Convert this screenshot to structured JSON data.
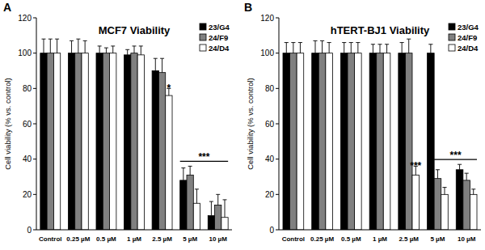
{
  "chart_data": [
    {
      "type": "bar",
      "panel_label": "A",
      "title": "MCF7 Viability",
      "y_label": "Cell viability (% vs. control)",
      "categories": [
        "Control",
        "0.25 µM",
        "0.5 µM",
        "1 µM",
        "2.5 µM",
        "5 µM",
        "10 µM"
      ],
      "series": [
        {
          "name": "23/G4",
          "color": "#000000",
          "values": [
            100,
            100,
            100,
            99,
            90,
            28,
            8
          ],
          "errors": [
            8,
            7,
            4,
            3,
            7,
            7,
            8
          ]
        },
        {
          "name": "24/F9",
          "color": "#808080",
          "values": [
            100,
            100,
            100,
            100,
            89,
            31,
            14
          ],
          "errors": [
            8,
            8,
            3,
            4,
            8,
            5,
            6
          ]
        },
        {
          "name": "24/D4",
          "color": "#ffffff",
          "values": [
            100,
            100,
            100,
            99,
            76,
            15,
            7
          ],
          "errors": [
            8,
            7,
            4,
            5,
            4,
            8,
            10
          ]
        }
      ],
      "annotations": [
        {
          "text": "*",
          "category": 4,
          "series": 2
        },
        {
          "text": "***",
          "from": {
            "category": 5,
            "series": 0
          },
          "to": {
            "category": 6,
            "series": 2
          }
        }
      ],
      "ylim": [
        0,
        120
      ],
      "yticks": [
        0,
        20,
        40,
        60,
        80,
        100,
        120
      ],
      "grid": false,
      "legend": "upper-right"
    },
    {
      "type": "bar",
      "panel_label": "B",
      "title": "hTERT-BJ1 Viability",
      "y_label": "Cell viability (% vs. control)",
      "categories": [
        "Control",
        "0.25 µM",
        "0.5 µM",
        "1 µM",
        "2.5 µM",
        "5 µM",
        "10 µM"
      ],
      "series": [
        {
          "name": "23/G4",
          "color": "#000000",
          "values": [
            100,
            100,
            100,
            100,
            100,
            100,
            34
          ],
          "errors": [
            6,
            7,
            6,
            5,
            6,
            5,
            3
          ]
        },
        {
          "name": "24/F9",
          "color": "#808080",
          "values": [
            100,
            100,
            100,
            100,
            100,
            29,
            28
          ],
          "errors": [
            6,
            7,
            6,
            5,
            8,
            5,
            4
          ]
        },
        {
          "name": "24/D4",
          "color": "#ffffff",
          "values": [
            100,
            100,
            100,
            100,
            31,
            20,
            20
          ],
          "errors": [
            6,
            6,
            6,
            5,
            5,
            4,
            3
          ]
        }
      ],
      "annotations": [
        {
          "text": "***",
          "category": 4,
          "series": 2
        },
        {
          "text": "***",
          "from": {
            "category": 5,
            "series": 1
          },
          "to": {
            "category": 6,
            "series": 2
          }
        }
      ],
      "ylim": [
        0,
        120
      ],
      "yticks": [
        0,
        20,
        40,
        60,
        80,
        100,
        120
      ],
      "grid": false,
      "legend": "upper-right"
    }
  ]
}
